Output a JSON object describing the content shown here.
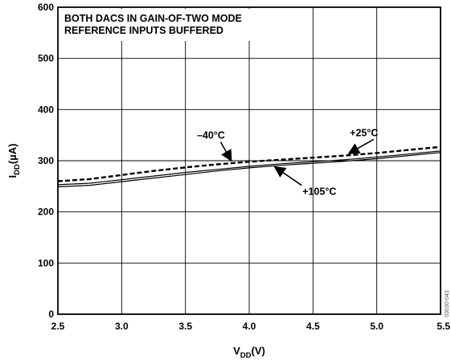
{
  "chart_data": {
    "type": "line",
    "xlim": [
      2.5,
      5.5
    ],
    "ylim": [
      0,
      600
    ],
    "x_ticks": [
      2.5,
      3.0,
      3.5,
      4.0,
      4.5,
      5.0,
      5.5
    ],
    "x_tick_labels": [
      "2.5",
      "3.0",
      "3.5",
      "4.0",
      "4.5",
      "5.0",
      "5.5"
    ],
    "y_ticks": [
      0,
      100,
      200,
      300,
      400,
      500,
      600
    ],
    "y_tick_labels": [
      "0",
      "100",
      "200",
      "300",
      "400",
      "500",
      "600"
    ],
    "xlabel": {
      "main": "V",
      "sub": "DD",
      "rest": "(V)"
    },
    "ylabel": {
      "main": "I",
      "sub": "DD",
      "rest": "(µA)"
    },
    "grid": true,
    "annotation_lines": [
      "BOTH DACS IN GAIN-OF-TWO MODE",
      "REFERENCE INPUTS BUFFERED"
    ],
    "figure_id": "03030-043",
    "series": [
      {
        "name": "–40°C",
        "style": "solid",
        "color": "#000000",
        "x": [
          2.5,
          2.75,
          3.0,
          3.25,
          3.5,
          3.75,
          4.0,
          4.25,
          4.5,
          4.75,
          5.0,
          5.25,
          5.5
        ],
        "y": [
          253,
          256,
          263,
          270,
          277,
          283,
          289,
          294,
          298,
          302,
          307,
          313,
          319
        ]
      },
      {
        "name": "+25°C",
        "style": "dashed",
        "color": "#000000",
        "x": [
          2.5,
          2.75,
          3.0,
          3.25,
          3.5,
          3.75,
          4.0,
          4.25,
          4.5,
          4.75,
          5.0,
          5.25,
          5.5
        ],
        "y": [
          260,
          264,
          272,
          280,
          287,
          293,
          298,
          302,
          306,
          310,
          315,
          321,
          327
        ]
      },
      {
        "name": "+105°C",
        "style": "solid",
        "color": "#000000",
        "x": [
          2.5,
          2.75,
          3.0,
          3.25,
          3.5,
          3.75,
          4.0,
          4.25,
          4.5,
          4.75,
          5.0,
          5.25,
          5.5
        ],
        "y": [
          249,
          252,
          259,
          266,
          273,
          280,
          286,
          291,
          295,
          299,
          304,
          310,
          316
        ]
      }
    ],
    "series_labels": [
      {
        "text": "–40°C",
        "label_at": [
          3.7,
          343
        ],
        "arrow_to": [
          3.86,
          300
        ]
      },
      {
        "text": "+25°C",
        "label_at": [
          4.9,
          348
        ],
        "arrow_to": [
          4.78,
          314
        ]
      },
      {
        "text": "+105°C",
        "label_at": [
          4.55,
          233
        ],
        "arrow_to": [
          4.2,
          288
        ]
      }
    ]
  }
}
